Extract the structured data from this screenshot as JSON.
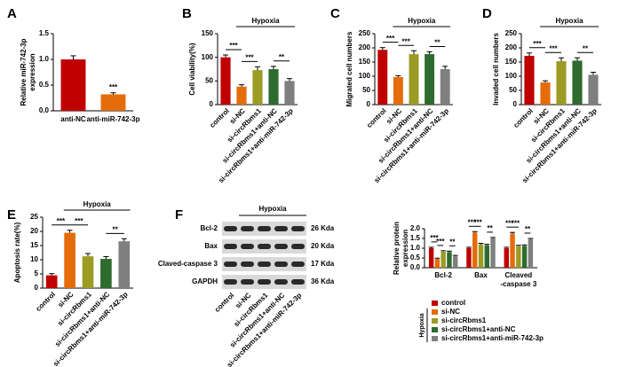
{
  "chart_data": [
    {
      "type": "bar",
      "panel": "A",
      "y_label": [
        "Relative miR-742-3p",
        "expression"
      ],
      "categories": [
        "anti-NC",
        "anti-miR-742-3p"
      ],
      "values": [
        1.0,
        0.32
      ],
      "errors": [
        0.07,
        0.03
      ],
      "colors": [
        "#c00000",
        "#e46c0a"
      ],
      "ylim": [
        0,
        1.5
      ],
      "yticks": [
        {
          "value": 0,
          "label": "0.0"
        },
        {
          "value": 0.5,
          "label": "0.5"
        },
        {
          "value": 1,
          "label": "1.0"
        },
        {
          "value": 1.5,
          "label": "1.5"
        }
      ],
      "annotations": [
        {
          "from": 1,
          "to": 1,
          "label": "***"
        }
      ]
    },
    {
      "type": "bar",
      "panel": "B",
      "y_label": [
        "Cell viability(%)"
      ],
      "categories": [
        "control",
        "si-NC",
        "si-circRbms1",
        "si-circRbms1+anti-NC",
        "si-circRbms1+anti-miR-742-3p"
      ],
      "values": [
        100,
        38,
        73,
        75,
        50
      ],
      "errors": [
        5,
        4,
        7,
        6,
        5
      ],
      "colors": [
        "#c00000",
        "#e46c0a",
        "#9c9b24",
        "#2e6b2e",
        "#7f7f7f"
      ],
      "ylim": [
        0,
        150
      ],
      "yticks": [
        0,
        50,
        100,
        150
      ],
      "group": {
        "label": "Hypoxia",
        "from": 1,
        "to": 4
      },
      "annotations": [
        {
          "from": 0,
          "to": 1,
          "label": "***"
        },
        {
          "from": 1,
          "to": 2,
          "label": "***"
        },
        {
          "from": 3,
          "to": 4,
          "label": "**"
        }
      ]
    },
    {
      "type": "bar",
      "panel": "C",
      "y_label": [
        "Migrated cell numbers"
      ],
      "categories": [
        "control",
        "si-NC",
        "si-circRbms1",
        "si-circRbms1+anti-NC",
        "si-circRbms1+anti-miR-742-3p"
      ],
      "values": [
        193,
        97,
        178,
        178,
        125
      ],
      "errors": [
        8,
        5,
        12,
        8,
        10
      ],
      "colors": [
        "#c00000",
        "#e46c0a",
        "#9c9b24",
        "#2e6b2e",
        "#7f7f7f"
      ],
      "ylim": [
        0,
        250
      ],
      "yticks": [
        0,
        50,
        100,
        150,
        200,
        250
      ],
      "group": {
        "label": "Hypoxia",
        "from": 1,
        "to": 4
      },
      "annotations": [
        {
          "from": 0,
          "to": 1,
          "label": "***"
        },
        {
          "from": 1,
          "to": 2,
          "label": "***"
        },
        {
          "from": 3,
          "to": 4,
          "label": "**"
        }
      ]
    },
    {
      "type": "bar",
      "panel": "D",
      "y_label": [
        "Invaded cell numbers"
      ],
      "categories": [
        "control",
        "si-NC",
        "si-circRbms1",
        "si-circRbms1+anti-NC",
        "si-circRbms1+anti-miR-742-3p"
      ],
      "values": [
        172,
        78,
        153,
        155,
        105
      ],
      "errors": [
        10,
        6,
        12,
        10,
        9
      ],
      "colors": [
        "#c00000",
        "#e46c0a",
        "#9c9b24",
        "#2e6b2e",
        "#7f7f7f"
      ],
      "ylim": [
        0,
        250
      ],
      "yticks": [
        0,
        50,
        100,
        150,
        200,
        250
      ],
      "group": {
        "label": "Hypoxia",
        "from": 1,
        "to": 4
      },
      "annotations": [
        {
          "from": 0,
          "to": 1,
          "label": "***"
        },
        {
          "from": 1,
          "to": 2,
          "label": "***"
        },
        {
          "from": 3,
          "to": 4,
          "label": "**"
        }
      ]
    },
    {
      "type": "bar",
      "panel": "E",
      "y_label": [
        "Apoptosis rate(%)"
      ],
      "categories": [
        "control",
        "si-NC",
        "si-circRbms1",
        "si-circRbms1+anti-NC",
        "si-circRbms1+anti-miR-742-3p"
      ],
      "values": [
        4.5,
        19.5,
        11.2,
        10.3,
        16.5
      ],
      "errors": [
        0.6,
        0.9,
        1.0,
        0.8,
        0.9
      ],
      "colors": [
        "#c00000",
        "#e46c0a",
        "#9c9b24",
        "#2e6b2e",
        "#7f7f7f"
      ],
      "ylim": [
        0,
        25
      ],
      "yticks": [
        0,
        5,
        10,
        15,
        20,
        25
      ],
      "group": {
        "label": "Hypoxia",
        "from": 1,
        "to": 4
      },
      "annotations": [
        {
          "from": 0,
          "to": 1,
          "label": "***"
        },
        {
          "from": 1,
          "to": 2,
          "label": "***"
        },
        {
          "from": 3,
          "to": 4,
          "label": "**"
        }
      ]
    },
    {
      "type": "bar",
      "y_label": [
        "Relative protein",
        "expression"
      ],
      "categories": [
        [
          "Bcl-2"
        ],
        [
          "Bax"
        ],
        [
          "Cleaved",
          "-caspase 3"
        ]
      ],
      "series": [
        {
          "name": "control",
          "color": "#c00000",
          "values": [
            1.0,
            1.0,
            1.0
          ],
          "errors": [
            0.05,
            0.05,
            0.05
          ]
        },
        {
          "name": "si-NC",
          "color": "#e46c0a",
          "values": [
            0.45,
            1.8,
            1.75
          ],
          "errors": [
            0.04,
            0.05,
            0.06
          ]
        },
        {
          "name": "si-circRbms1",
          "color": "#9c9b24",
          "values": [
            0.82,
            1.2,
            1.1
          ],
          "errors": [
            0.05,
            0.05,
            0.05
          ]
        },
        {
          "name": "si-circRbms1+anti-NC",
          "color": "#2e6b2e",
          "values": [
            0.8,
            1.15,
            1.12
          ],
          "errors": [
            0.05,
            0.05,
            0.05
          ]
        },
        {
          "name": "si-circRbms1+anti-miR-742-3p",
          "color": "#7f7f7f",
          "values": [
            0.58,
            1.5,
            1.45
          ],
          "errors": [
            0.05,
            0.05,
            0.05
          ]
        }
      ],
      "ylim": [
        0,
        2
      ],
      "yticks": [
        {
          "value": 0,
          "label": "0.0"
        },
        {
          "value": 0.5,
          "label": "0.5"
        },
        {
          "value": 1,
          "label": "1.0"
        },
        {
          "value": 1.5,
          "label": "1.5"
        },
        {
          "value": 2,
          "label": "2.0"
        }
      ],
      "legend_group": {
        "label": "Hypoxia",
        "from": 1,
        "to": 4
      },
      "annotations": [
        {
          "category": 0,
          "from": 0,
          "to": 1,
          "label": "***"
        },
        {
          "category": 0,
          "from": 1,
          "to": 2,
          "label": "***"
        },
        {
          "category": 0,
          "from": 3,
          "to": 4,
          "label": "**"
        },
        {
          "category": 1,
          "from": 0,
          "to": 1,
          "label": "***"
        },
        {
          "category": 1,
          "from": 1,
          "to": 2,
          "label": "***"
        },
        {
          "category": 1,
          "from": 3,
          "to": 4,
          "label": "**"
        },
        {
          "category": 2,
          "from": 0,
          "to": 1,
          "label": "***"
        },
        {
          "category": 2,
          "from": 1,
          "to": 2,
          "label": "***"
        },
        {
          "category": 2,
          "from": 3,
          "to": 4,
          "label": "**"
        }
      ]
    }
  ],
  "blot": {
    "panel": "F",
    "header": "Hypoxia",
    "rows": [
      "Bcl-2",
      "Bax",
      "Claved-caspase 3",
      "GAPDH"
    ],
    "sizes": [
      "26 Kda",
      "20 Kda",
      "17 Kda",
      "36 Kda"
    ],
    "lanes": [
      "control",
      "si-NC",
      "si-circRbms1",
      "si-circRbms1+anti-NC",
      "si-circRbms1+anti-miR-742-3p"
    ]
  }
}
